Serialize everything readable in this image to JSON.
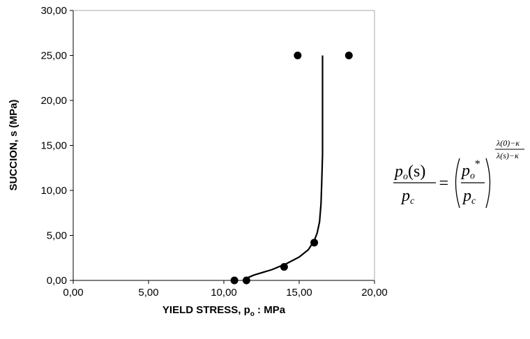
{
  "chart_data": {
    "type": "scatter",
    "xlabel": "YIELD STRESS, p",
    "xlabel_sub": "o",
    "xlabel_tail": " : MPa",
    "ylabel": "SUCCION, s (MPa)",
    "xlim": [
      0,
      20
    ],
    "ylim": [
      0,
      30
    ],
    "xticks": [
      "0,00",
      "5,00",
      "10,00",
      "15,00",
      "20,00"
    ],
    "yticks": [
      "0,00",
      "5,00",
      "10,00",
      "15,00",
      "20,00",
      "25,00",
      "30,00"
    ],
    "grid": false,
    "series": [
      {
        "kind": "points",
        "color": "#000000",
        "points": [
          {
            "x": 10.7,
            "y": 0.0
          },
          {
            "x": 11.5,
            "y": 0.0
          },
          {
            "x": 14.0,
            "y": 1.5
          },
          {
            "x": 16.0,
            "y": 4.2
          },
          {
            "x": 14.9,
            "y": 25.0
          },
          {
            "x": 18.3,
            "y": 25.0
          }
        ]
      },
      {
        "kind": "line",
        "color": "#000000",
        "points": [
          {
            "x": 11.3,
            "y": 0.1
          },
          {
            "x": 12.0,
            "y": 0.6
          },
          {
            "x": 13.2,
            "y": 1.2
          },
          {
            "x": 14.2,
            "y": 1.9
          },
          {
            "x": 15.0,
            "y": 2.6
          },
          {
            "x": 15.6,
            "y": 3.4
          },
          {
            "x": 16.0,
            "y": 4.4
          },
          {
            "x": 16.2,
            "y": 5.3
          },
          {
            "x": 16.35,
            "y": 6.5
          },
          {
            "x": 16.45,
            "y": 8.5
          },
          {
            "x": 16.5,
            "y": 11.0
          },
          {
            "x": 16.55,
            "y": 14.0
          },
          {
            "x": 16.55,
            "y": 25.0
          }
        ]
      }
    ]
  },
  "formula": {
    "num_p": "p",
    "num_sub": "o",
    "num_s": "(s)",
    "den_p": "p",
    "den_sub": "c",
    "in_num_p": "p",
    "in_num_sub": "o",
    "in_num_star": "*",
    "in_den_p": "p",
    "in_den_sub": "c",
    "exp_num": "λ(0)−κ",
    "exp_den": "λ(s)−κ",
    "equals": "="
  }
}
